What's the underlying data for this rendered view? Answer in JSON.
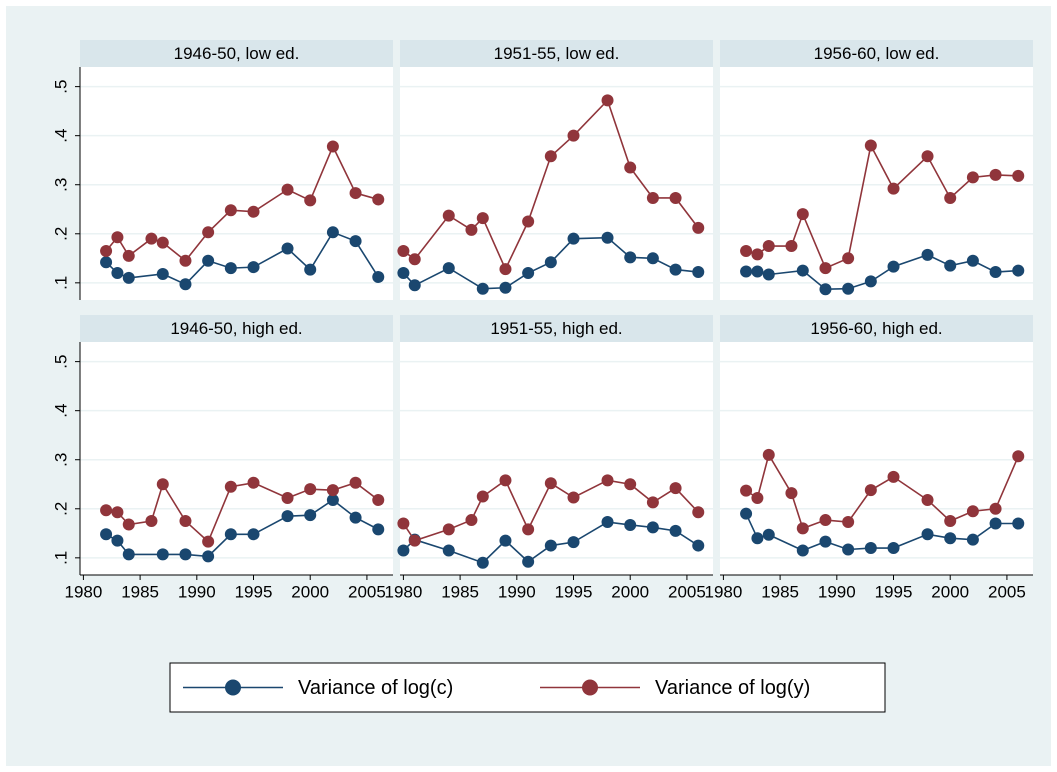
{
  "chart_data": {
    "type": "line",
    "xlim": [
      1979.7,
      2007.3
    ],
    "xticks": [
      1980,
      1985,
      1990,
      1995,
      2000,
      2005
    ],
    "ylim": [
      0.065,
      0.54
    ],
    "yticks": [
      {
        "value": 0.1,
        "label": ".1"
      },
      {
        "value": 0.2,
        "label": ".2"
      },
      {
        "value": 0.3,
        "label": ".3"
      },
      {
        "value": 0.4,
        "label": ".4"
      },
      {
        "value": 0.5,
        "label": ".5"
      }
    ],
    "grid": true,
    "legend": "bottom",
    "series": [
      {
        "name": "Variance of log(c)",
        "color": "#1a476f"
      },
      {
        "name": "Variance of log(y)",
        "color": "#90353b"
      }
    ],
    "panels": [
      {
        "title": "1946-50, low ed.",
        "series": [
          {
            "x": [
              1982,
              1983,
              1984,
              1987,
              1989,
              1991,
              1993,
              1995,
              1998,
              2000,
              2002,
              2004,
              2006
            ],
            "values": [
              0.142,
              0.12,
              0.11,
              0.118,
              0.097,
              0.145,
              0.13,
              0.132,
              0.17,
              0.127,
              0.203,
              0.185,
              0.112
            ]
          },
          {
            "x": [
              1982,
              1983,
              1984,
              1986,
              1987,
              1989,
              1991,
              1993,
              1995,
              1998,
              2000,
              2002,
              2004,
              2006
            ],
            "values": [
              0.165,
              0.193,
              0.155,
              0.19,
              0.182,
              0.145,
              0.203,
              0.248,
              0.245,
              0.29,
              0.268,
              0.378,
              0.283,
              0.27
            ]
          }
        ]
      },
      {
        "title": "1951-55, low ed.",
        "series": [
          {
            "x": [
              1980,
              1981,
              1984,
              1987,
              1989,
              1991,
              1993,
              1995,
              1998,
              2000,
              2002,
              2004,
              2006
            ],
            "values": [
              0.12,
              0.095,
              0.13,
              0.088,
              0.09,
              0.12,
              0.142,
              0.19,
              0.192,
              0.152,
              0.15,
              0.127,
              0.122
            ]
          },
          {
            "x": [
              1980,
              1981,
              1984,
              1986,
              1987,
              1989,
              1991,
              1993,
              1995,
              1998,
              2000,
              2002,
              2004,
              2006
            ],
            "values": [
              0.165,
              0.148,
              0.237,
              0.208,
              0.232,
              0.128,
              0.225,
              0.358,
              0.4,
              0.472,
              0.335,
              0.273,
              0.273,
              0.212
            ]
          }
        ]
      },
      {
        "title": "1956-60, low ed.",
        "series": [
          {
            "x": [
              1982,
              1983,
              1984,
              1987,
              1989,
              1991,
              1993,
              1995,
              1998,
              2000,
              2002,
              2004,
              2006
            ],
            "values": [
              0.123,
              0.123,
              0.117,
              0.125,
              0.087,
              0.088,
              0.103,
              0.133,
              0.157,
              0.135,
              0.145,
              0.122,
              0.125
            ]
          },
          {
            "x": [
              1982,
              1983,
              1984,
              1986,
              1987,
              1989,
              1991,
              1993,
              1995,
              1998,
              2000,
              2002,
              2004,
              2006
            ],
            "values": [
              0.165,
              0.158,
              0.175,
              0.175,
              0.24,
              0.13,
              0.15,
              0.38,
              0.292,
              0.358,
              0.273,
              0.315,
              0.32,
              0.318
            ]
          }
        ]
      },
      {
        "title": "1946-50, high ed.",
        "series": [
          {
            "x": [
              1982,
              1983,
              1984,
              1987,
              1989,
              1991,
              1993,
              1995,
              1998,
              2000,
              2002,
              2004,
              2006
            ],
            "values": [
              0.148,
              0.135,
              0.107,
              0.107,
              0.107,
              0.103,
              0.148,
              0.148,
              0.185,
              0.187,
              0.218,
              0.182,
              0.158
            ]
          },
          {
            "x": [
              1982,
              1983,
              1984,
              1986,
              1987,
              1989,
              1991,
              1993,
              1995,
              1998,
              2000,
              2002,
              2004,
              2006
            ],
            "values": [
              0.197,
              0.193,
              0.168,
              0.175,
              0.25,
              0.175,
              0.133,
              0.245,
              0.253,
              0.222,
              0.24,
              0.238,
              0.253,
              0.218
            ]
          }
        ]
      },
      {
        "title": "1951-55, high ed.",
        "series": [
          {
            "x": [
              1980,
              1981,
              1984,
              1987,
              1989,
              1991,
              1993,
              1995,
              1998,
              2000,
              2002,
              2004,
              2006
            ],
            "values": [
              0.115,
              0.137,
              0.115,
              0.09,
              0.135,
              0.092,
              0.125,
              0.132,
              0.173,
              0.167,
              0.162,
              0.155,
              0.125
            ]
          },
          {
            "x": [
              1980,
              1981,
              1984,
              1986,
              1987,
              1989,
              1991,
              1993,
              1995,
              1998,
              2000,
              2002,
              2004,
              2006
            ],
            "values": [
              0.17,
              0.135,
              0.158,
              0.177,
              0.225,
              0.258,
              0.158,
              0.252,
              0.223,
              0.258,
              0.25,
              0.213,
              0.242,
              0.193
            ]
          }
        ]
      },
      {
        "title": "1956-60, high ed.",
        "series": [
          {
            "x": [
              1982,
              1983,
              1984,
              1987,
              1989,
              1991,
              1993,
              1995,
              1998,
              2000,
              2002,
              2004,
              2006
            ],
            "values": [
              0.19,
              0.14,
              0.147,
              0.115,
              0.133,
              0.117,
              0.12,
              0.12,
              0.148,
              0.14,
              0.137,
              0.17,
              0.17
            ]
          },
          {
            "x": [
              1982,
              1983,
              1984,
              1986,
              1987,
              1989,
              1991,
              1993,
              1995,
              1998,
              2000,
              2002,
              2004,
              2006
            ],
            "values": [
              0.237,
              0.222,
              0.31,
              0.232,
              0.16,
              0.177,
              0.173,
              0.238,
              0.265,
              0.218,
              0.175,
              0.195,
              0.2,
              0.307
            ]
          }
        ]
      }
    ]
  }
}
